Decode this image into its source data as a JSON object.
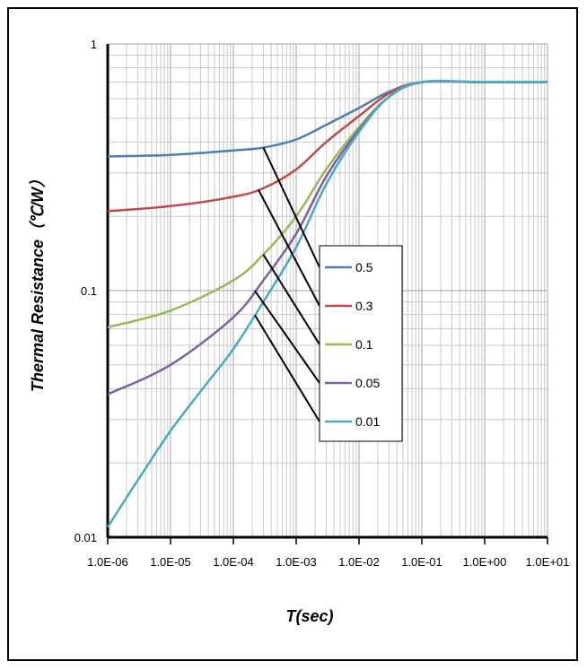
{
  "chart_data": {
    "type": "line",
    "title": "",
    "xlabel": "T(sec)",
    "ylabel": "Thermal Resistance（℃/W）",
    "x_scale": "log",
    "y_scale": "log",
    "xlim": [
      1e-06,
      10
    ],
    "ylim": [
      0.01,
      1
    ],
    "x_tick_values": [
      1e-06,
      1e-05,
      0.0001,
      0.001,
      0.01,
      0.1,
      1,
      10
    ],
    "x_tick_labels": [
      "1.0E-06",
      "1.0E-05",
      "1.0E-04",
      "1.0E-03",
      "1.0E-02",
      "1.0E-01",
      "1.0E+00",
      "1.0E+01"
    ],
    "y_tick_values": [
      0.01,
      0.1,
      1
    ],
    "y_tick_labels": [
      "0.01",
      "0.1",
      "1"
    ],
    "grid": true,
    "legend_position": "center-right",
    "series": [
      {
        "name": "0.5",
        "color": "#4a7ebb",
        "x": [
          1e-06,
          1e-05,
          0.0001,
          0.0003,
          0.001,
          0.003,
          0.01,
          0.03,
          0.1,
          1,
          10
        ],
        "y": [
          0.35,
          0.355,
          0.37,
          0.38,
          0.41,
          0.47,
          0.55,
          0.64,
          0.7,
          0.7,
          0.7
        ]
      },
      {
        "name": "0.3",
        "color": "#be4b48",
        "x": [
          1e-06,
          1e-05,
          0.0001,
          0.0003,
          0.001,
          0.003,
          0.01,
          0.03,
          0.1,
          1,
          10
        ],
        "y": [
          0.21,
          0.22,
          0.24,
          0.26,
          0.31,
          0.4,
          0.51,
          0.63,
          0.7,
          0.7,
          0.7
        ]
      },
      {
        "name": "0.1",
        "color": "#98b954",
        "x": [
          1e-06,
          1e-05,
          0.0001,
          0.0003,
          0.001,
          0.003,
          0.01,
          0.03,
          0.1,
          1,
          10
        ],
        "y": [
          0.071,
          0.083,
          0.11,
          0.14,
          0.2,
          0.31,
          0.46,
          0.61,
          0.7,
          0.7,
          0.7
        ]
      },
      {
        "name": "0.05",
        "color": "#7d60a0",
        "x": [
          1e-06,
          1e-05,
          0.0001,
          0.0003,
          0.001,
          0.003,
          0.01,
          0.03,
          0.1,
          1,
          10
        ],
        "y": [
          0.038,
          0.05,
          0.078,
          0.11,
          0.17,
          0.29,
          0.45,
          0.61,
          0.7,
          0.7,
          0.7
        ]
      },
      {
        "name": "0.01",
        "color": "#46aac5",
        "x": [
          1e-06,
          3e-06,
          1e-05,
          3e-05,
          0.0001,
          0.0003,
          0.001,
          0.003,
          0.01,
          0.03,
          0.1,
          1,
          10
        ],
        "y": [
          0.011,
          0.017,
          0.027,
          0.039,
          0.058,
          0.09,
          0.15,
          0.27,
          0.44,
          0.61,
          0.7,
          0.7,
          0.7
        ]
      }
    ]
  }
}
